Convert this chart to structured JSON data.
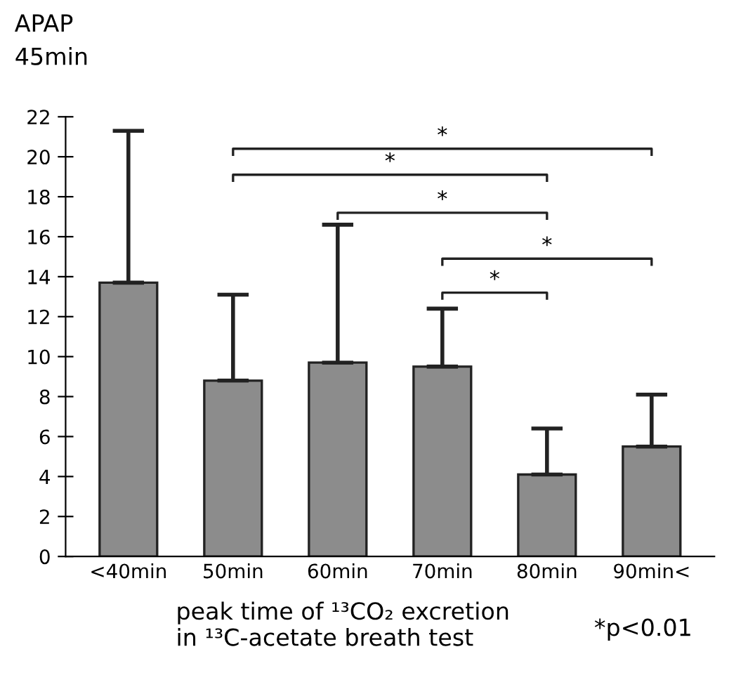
{
  "chart_data": {
    "type": "bar",
    "title": "APAP\n45min",
    "xlabel": "peak time of ¹³CO₂ excretion\nin ¹³C-acetate breath test",
    "categories": [
      "<40min",
      "50min",
      "60min",
      "70min",
      "80min",
      "90min<"
    ],
    "values": [
      13.7,
      8.8,
      9.7,
      9.5,
      4.1,
      5.5
    ],
    "errors": [
      [
        13.7,
        21.3
      ],
      [
        8.8,
        13.1
      ],
      [
        9.7,
        16.6
      ],
      [
        9.5,
        12.4
      ],
      [
        4.1,
        6.4
      ],
      [
        5.5,
        8.1
      ]
    ],
    "color": "#8c8c8c",
    "ylim": [
      0,
      22
    ],
    "yticks": [
      0,
      2,
      4,
      6,
      8,
      10,
      12,
      14,
      16,
      18,
      20,
      22
    ],
    "grid": false,
    "annotations": [
      "*",
      "*",
      "*",
      "*",
      "*",
      "*p<0.01"
    ]
  }
}
